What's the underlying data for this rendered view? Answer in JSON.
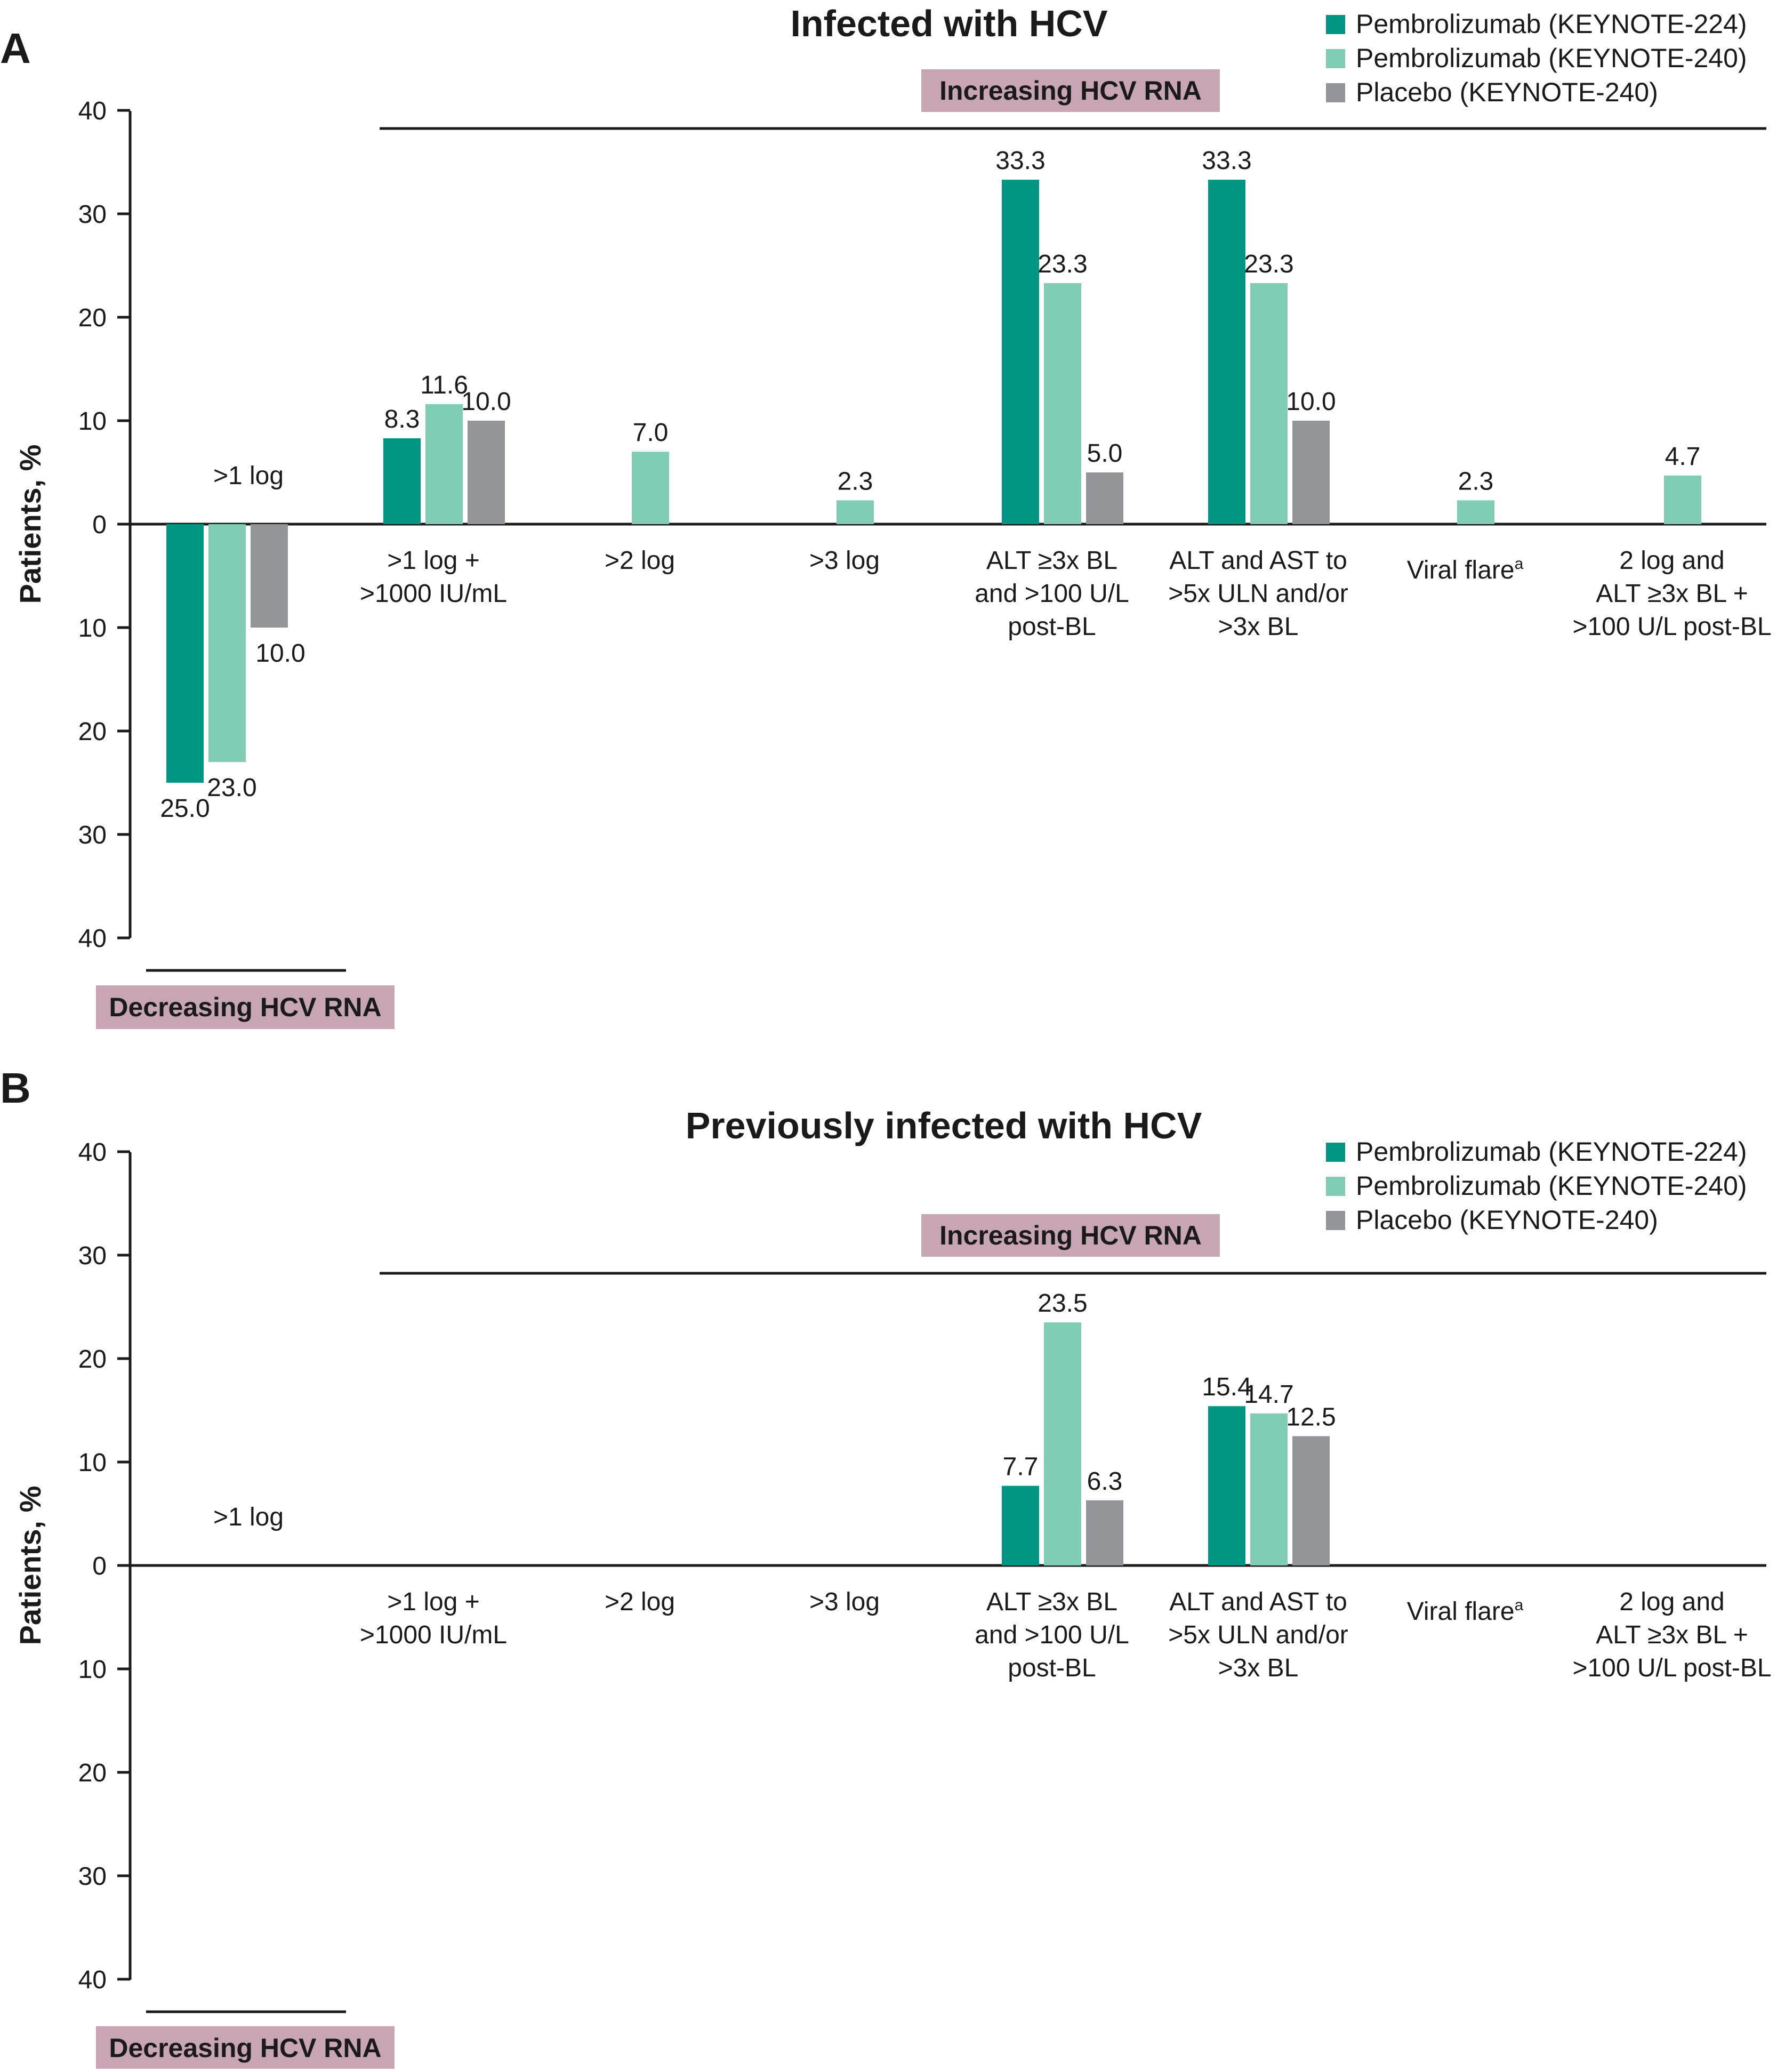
{
  "colors": {
    "pembro224": "#009681",
    "pembro240": "#7ecdb4",
    "placebo": "#939598",
    "box": "#c8a5b4"
  },
  "legend": [
    {
      "label": "Pembrolizumab (KEYNOTE-224)",
      "color": "#009681"
    },
    {
      "label": "Pembrolizumab (KEYNOTE-240)",
      "color": "#7ecdb4"
    },
    {
      "label": "Placebo (KEYNOTE-240)",
      "color": "#939598"
    }
  ],
  "ylabel": "Patients, %",
  "increasing_label": "Increasing HCV RNA",
  "decreasing_label": "Decreasing HCV RNA",
  "chart_data": [
    {
      "type": "bar",
      "panel": "A",
      "title": "Infected with HCV",
      "ylabel": "Patients, %",
      "yticks": [
        "40",
        "30",
        "20",
        "10",
        "0",
        "10",
        "20",
        "30",
        "40"
      ],
      "ylim": [
        -40,
        40
      ],
      "categories": [
        {
          "lines": [
            ">1 log"
          ]
        },
        {
          "lines": [
            ">1 log +",
            ">1000 IU/mL"
          ]
        },
        {
          "lines": [
            ">2 log"
          ]
        },
        {
          "lines": [
            ">3 log"
          ]
        },
        {
          "lines": [
            "ALT ≥3x BL",
            "and >100 U/L",
            "post-BL"
          ]
        },
        {
          "lines": [
            "ALT and AST to",
            ">5x ULN and/or",
            ">3x BL"
          ]
        },
        {
          "lines": [
            "Viral flare"
          ],
          "sup": "a"
        },
        {
          "lines": [
            "2 log and",
            "ALT ≥3x BL +",
            ">100 U/L post-BL"
          ]
        }
      ],
      "series": [
        {
          "name": "Pembrolizumab (KEYNOTE-224)",
          "values": [
            -25.0,
            8.3,
            null,
            null,
            33.3,
            33.3,
            null,
            null
          ]
        },
        {
          "name": "Pembrolizumab (KEYNOTE-240)",
          "values": [
            -23.0,
            11.6,
            7.0,
            2.3,
            23.3,
            23.3,
            2.3,
            4.7
          ]
        },
        {
          "name": "Placebo (KEYNOTE-240)",
          "values": [
            -10.0,
            10.0,
            null,
            null,
            5.0,
            10.0,
            null,
            null
          ]
        }
      ],
      "labels": [
        [
          "25.0",
          "8.3",
          null,
          null,
          "33.3",
          "33.3",
          null,
          null
        ],
        [
          "23.0",
          "11.6",
          "7.0",
          "2.3",
          "23.3",
          "23.3",
          "2.3",
          "4.7"
        ],
        [
          "10.0",
          "10.0",
          null,
          null,
          "5.0",
          "10.0",
          null,
          null
        ]
      ]
    },
    {
      "type": "bar",
      "panel": "B",
      "title": "Previously infected with HCV",
      "ylabel": "Patients, %",
      "yticks": [
        "40",
        "30",
        "20",
        "10",
        "0",
        "10",
        "20",
        "30",
        "40"
      ],
      "ylim": [
        -40,
        40
      ],
      "categories": [
        {
          "lines": [
            ">1 log"
          ]
        },
        {
          "lines": [
            ">1 log +",
            ">1000 IU/mL"
          ]
        },
        {
          "lines": [
            ">2 log"
          ]
        },
        {
          "lines": [
            ">3 log"
          ]
        },
        {
          "lines": [
            "ALT ≥3x BL",
            "and >100 U/L",
            "post-BL"
          ]
        },
        {
          "lines": [
            "ALT and AST to",
            ">5x ULN and/or",
            ">3x BL"
          ]
        },
        {
          "lines": [
            "Viral flare"
          ],
          "sup": "a"
        },
        {
          "lines": [
            "2 log and",
            "ALT ≥3x BL +",
            ">100 U/L post-BL"
          ]
        }
      ],
      "series": [
        {
          "name": "Pembrolizumab (KEYNOTE-224)",
          "values": [
            null,
            null,
            null,
            null,
            7.7,
            15.4,
            null,
            null
          ]
        },
        {
          "name": "Pembrolizumab (KEYNOTE-240)",
          "values": [
            null,
            null,
            null,
            null,
            23.5,
            14.7,
            null,
            null
          ]
        },
        {
          "name": "Placebo (KEYNOTE-240)",
          "values": [
            null,
            null,
            null,
            null,
            6.3,
            12.5,
            null,
            null
          ]
        }
      ],
      "labels": [
        [
          null,
          null,
          null,
          null,
          "7.7",
          "15.4",
          null,
          null
        ],
        [
          null,
          null,
          null,
          null,
          "23.5",
          "14.7",
          null,
          null
        ],
        [
          null,
          null,
          null,
          null,
          "6.3",
          "12.5",
          null,
          null
        ]
      ]
    }
  ]
}
